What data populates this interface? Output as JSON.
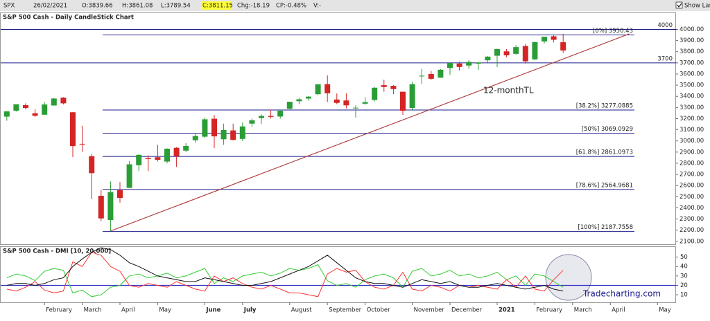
{
  "toolbar": {
    "symbol": "SPX",
    "date": "26/02/2021",
    "open": "O:3839.66",
    "high": "H:3861.08",
    "low": "L:3789.54",
    "close": "C:3811.15",
    "change": "Chg:-18.19",
    "change_pct": "CP:-0.48%",
    "volume": "V:-",
    "show_last": "Show Last"
  },
  "watermark": "Tradecharting.com",
  "chart_data": [
    {
      "type": "candlestick",
      "title": "S&P 500 Cash - Daily CandleStick Chart",
      "up_color": "#2a9d36",
      "down_color": "#d42424",
      "open": [
        3218,
        3271,
        3321,
        3248,
        3235,
        3318,
        3388,
        3257,
        2974,
        2863,
        2508,
        2291,
        2558,
        2579,
        2782,
        2846,
        2854,
        2815,
        2938,
        2913,
        3006,
        3038,
        3199,
        3015,
        3094,
        3018,
        3155,
        3205,
        3224,
        3219,
        3288,
        3356,
        3380,
        3419,
        3509,
        3371,
        3363,
        3296,
        3334,
        3367,
        3500,
        3494,
        3441,
        3296,
        3583,
        3600,
        3567,
        3654,
        3694,
        3676,
        3693,
        3723,
        3764,
        3803,
        3781,
        3851,
        3731,
        3892,
        3938,
        3885,
        null,
        null,
        null,
        null,
        null,
        null,
        null,
        null,
        null,
        null
      ],
      "high": [
        3267,
        3329,
        3337,
        3285,
        3347,
        3385,
        3393,
        3259,
        3136,
        2882,
        2562,
        2637,
        2631,
        2819,
        2880,
        2870,
        2965,
        2934,
        2945,
        2980,
        3068,
        3211,
        3233,
        3155,
        3155,
        3165,
        3200,
        3238,
        3280,
        3272,
        3352,
        3387,
        3404,
        3509,
        3588,
        3425,
        3428,
        3320,
        3393,
        3483,
        3549,
        3502,
        3441,
        3529,
        3646,
        3628,
        3645,
        3699,
        3712,
        3726,
        3711,
        3760,
        3827,
        3823,
        3860,
        3870,
        3887,
        3918,
        3950,
        3961,
        null,
        null,
        null,
        null,
        null,
        null,
        null,
        null,
        null,
        null
      ],
      "low": [
        3181,
        3263,
        3281,
        3214,
        3234,
        3316,
        3328,
        2855,
        2902,
        2478,
        2280,
        2192,
        2447,
        2576,
        2730,
        2728,
        2815,
        2798,
        2767,
        2900,
        2984,
        3025,
        2936,
        2965,
        3004,
        2999,
        3127,
        3154,
        3201,
        3200,
        3284,
        3330,
        3360,
        3410,
        3349,
        3330,
        3292,
        3210,
        3323,
        3354,
        3441,
        3419,
        3234,
        3280,
        3512,
        3547,
        3567,
        3594,
        3633,
        3647,
        3636,
        3703,
        3663,
        3749,
        3774,
        3694,
        3725,
        3874,
        3884,
        3789,
        null,
        null,
        null,
        null,
        null,
        null,
        null,
        null,
        null,
        null
      ],
      "close": [
        3265,
        3329,
        3295,
        3225,
        3327,
        3380,
        3337,
        2954,
        2972,
        2711,
        2305,
        2541,
        2489,
        2790,
        2875,
        2837,
        2831,
        2930,
        2864,
        2955,
        3044,
        3194,
        3041,
        3098,
        3009,
        3130,
        3185,
        3224,
        3216,
        3271,
        3351,
        3373,
        3397,
        3508,
        3427,
        3341,
        3319,
        3298,
        3348,
        3477,
        3484,
        3465,
        3270,
        3509,
        3585,
        3557,
        3638,
        3699,
        3663,
        3709,
        3703,
        3756,
        3824,
        3768,
        3841,
        3714,
        3887,
        3934,
        3907,
        3811,
        null,
        null,
        null,
        null,
        null,
        null,
        null,
        null,
        null,
        null
      ],
      "ylim": [
        2080,
        4090
      ],
      "yticks": [
        {
          "value": 2100,
          "label": "2100.00"
        },
        {
          "value": 2200,
          "label": "2200.00"
        },
        {
          "value": 2300,
          "label": "2300.00"
        },
        {
          "value": 2400,
          "label": "2400.00"
        },
        {
          "value": 2500,
          "label": "2500.00"
        },
        {
          "value": 2600,
          "label": "2600.00"
        },
        {
          "value": 2700,
          "label": "2700.00"
        },
        {
          "value": 2800,
          "label": "2800.00"
        },
        {
          "value": 2900,
          "label": "2900.00"
        },
        {
          "value": 3000,
          "label": "3000.00"
        },
        {
          "value": 3100,
          "label": "3100.00"
        },
        {
          "value": 3200,
          "label": "3200.00"
        },
        {
          "value": 3300,
          "label": "3300.00"
        },
        {
          "value": 3400,
          "label": "3400.00"
        },
        {
          "value": 3500,
          "label": "3500.00"
        },
        {
          "value": 3600,
          "label": "3600.00"
        },
        {
          "value": 3700,
          "label": "3700.00"
        },
        {
          "value": 3800,
          "label": "3800.00"
        },
        {
          "value": 3900,
          "label": "3900.00"
        },
        {
          "value": 4000,
          "label": "4000.00"
        }
      ],
      "level_lines": [
        {
          "value": 4000,
          "label": "4000"
        },
        {
          "value": 3700,
          "label": "3700"
        }
      ],
      "fib_lines": [
        {
          "value": 3950.43,
          "label": "[0%] 3950.43"
        },
        {
          "value": 3277.0885,
          "label": "[38.2%] 3277.0885"
        },
        {
          "value": 3069.0929,
          "label": "[50%] 3069.0929"
        },
        {
          "value": 2861.0973,
          "label": "[61.8%] 2861.0973"
        },
        {
          "value": 2564.9681,
          "label": "[78.6%] 2564.9681"
        },
        {
          "value": 2187.7558,
          "label": "[100%] 2187.7558"
        }
      ],
      "fib_color": "#1a1a8c",
      "level_color": "#1a1a8c",
      "trendline": {
        "label": "12-monthTL",
        "color": "#b04040",
        "start": [
          11,
          2191.86
        ],
        "end": [
          66,
          3960
        ]
      }
    },
    {
      "type": "line",
      "title": "S&P 500 Cash - DMI [10, 20.000]",
      "categories": [
        null,
        null,
        null,
        null,
        "February",
        null,
        null,
        null,
        "March",
        null,
        null,
        null,
        "April",
        null,
        null,
        null,
        "May",
        null,
        null,
        null,
        null,
        "June",
        null,
        null,
        null,
        "July",
        null,
        null,
        null,
        null,
        "August",
        null,
        null,
        null,
        "September",
        null,
        null,
        null,
        "October",
        null,
        null,
        null,
        null,
        "November",
        null,
        null,
        null,
        "December",
        null,
        null,
        null,
        null,
        "2021",
        null,
        null,
        null,
        "February",
        null,
        null,
        null,
        "March",
        null,
        null,
        null,
        "April",
        null,
        null,
        null,
        null,
        "May"
      ],
      "series": [
        {
          "color": "#33cc33",
          "values": [
            28,
            32,
            30,
            25,
            35,
            38,
            36,
            12,
            15,
            8,
            10,
            18,
            20,
            30,
            32,
            28,
            30,
            33,
            28,
            30,
            34,
            38,
            22,
            28,
            24,
            30,
            32,
            34,
            30,
            33,
            38,
            36,
            38,
            42,
            25,
            20,
            22,
            18,
            26,
            30,
            32,
            28,
            18,
            35,
            38,
            30,
            32,
            36,
            30,
            32,
            28,
            30,
            34,
            26,
            30,
            20,
            32,
            30,
            24,
            18,
            null,
            null,
            null,
            null,
            null,
            null,
            null,
            null,
            null,
            null
          ]
        },
        {
          "color": "#ff3030",
          "values": [
            16,
            14,
            18,
            24,
            15,
            12,
            14,
            45,
            40,
            55,
            52,
            40,
            35,
            20,
            18,
            22,
            20,
            18,
            24,
            20,
            16,
            14,
            30,
            24,
            28,
            22,
            18,
            16,
            20,
            16,
            12,
            12,
            10,
            8,
            32,
            38,
            34,
            36,
            24,
            18,
            16,
            20,
            34,
            16,
            14,
            20,
            18,
            14,
            20,
            18,
            20,
            18,
            16,
            26,
            18,
            30,
            16,
            14,
            26,
            36,
            null,
            null,
            null,
            null,
            null,
            null,
            null,
            null,
            null,
            null
          ]
        },
        {
          "color": "#111111",
          "values": [
            20,
            22,
            22,
            20,
            22,
            26,
            28,
            40,
            48,
            55,
            60,
            58,
            52,
            44,
            40,
            35,
            30,
            28,
            26,
            24,
            24,
            28,
            26,
            24,
            22,
            20,
            20,
            22,
            24,
            28,
            32,
            36,
            40,
            46,
            52,
            44,
            36,
            28,
            24,
            22,
            22,
            20,
            18,
            22,
            26,
            24,
            22,
            24,
            20,
            18,
            18,
            20,
            22,
            20,
            18,
            16,
            18,
            20,
            16,
            14,
            null,
            null,
            null,
            null,
            null,
            null,
            null,
            null,
            null,
            null
          ]
        }
      ],
      "reference_line": {
        "value": 20,
        "color": "#3030c8"
      },
      "ylim": [
        2,
        60
      ],
      "yticks": [
        10,
        20,
        30,
        40,
        50
      ]
    }
  ]
}
